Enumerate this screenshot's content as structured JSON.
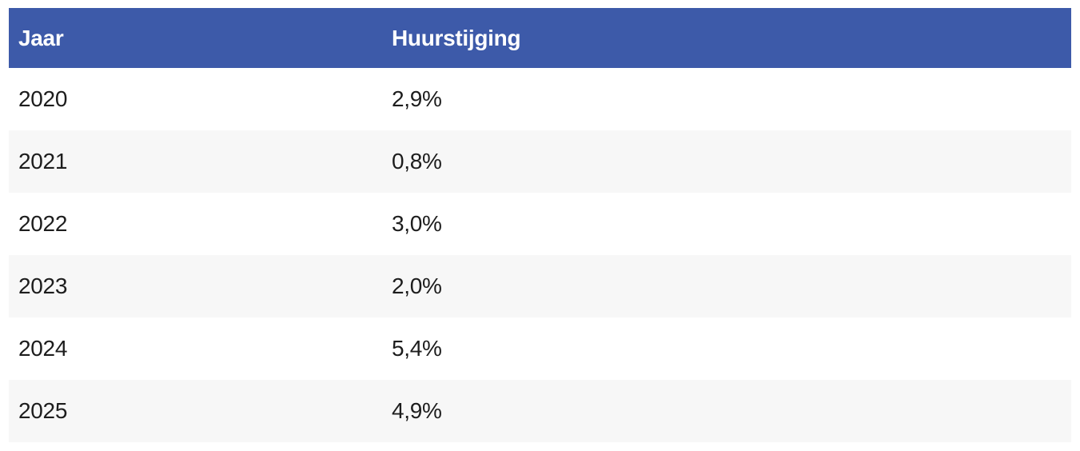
{
  "table": {
    "columns": [
      "Jaar",
      "Huurstijging"
    ],
    "rows": [
      {
        "year": "2020",
        "increase": "2,9%"
      },
      {
        "year": "2021",
        "increase": "0,8%"
      },
      {
        "year": "2022",
        "increase": "3,0%"
      },
      {
        "year": "2023",
        "increase": "2,0%"
      },
      {
        "year": "2024",
        "increase": "5,4%"
      },
      {
        "year": "2025",
        "increase": "4,9%"
      }
    ]
  },
  "colors": {
    "header_bg": "#3d5aa9",
    "header_text": "#ffffff",
    "stripe_bg": "#f7f7f7",
    "body_text": "#1d1d1d",
    "page_bg": "#ffffff"
  },
  "chart_data": {
    "type": "table",
    "title": "",
    "columns": [
      "Jaar",
      "Huurstijging"
    ],
    "categories": [
      "2020",
      "2021",
      "2022",
      "2023",
      "2024",
      "2025"
    ],
    "values": [
      2.9,
      0.8,
      3.0,
      2.0,
      5.4,
      4.9
    ],
    "value_labels": [
      "2,9%",
      "0,8%",
      "3,0%",
      "2,0%",
      "5,4%",
      "4,9%"
    ],
    "value_unit": "%",
    "decimal_separator": ",",
    "layout": "striped rows, blue header, no gridlines"
  }
}
